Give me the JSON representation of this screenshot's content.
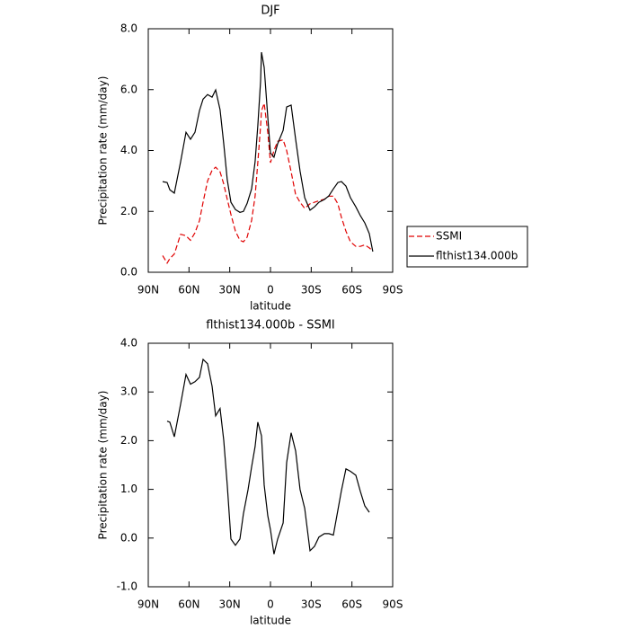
{
  "chart_data": [
    {
      "type": "line",
      "title": "DJF",
      "xlabel": "latitude",
      "ylabel": "Precipitation rate (mm/day)",
      "x": [
        79.4,
        76.1,
        74.1,
        70.8,
        66.2,
        62.2,
        58.9,
        55.6,
        52.3,
        49.6,
        46.3,
        43.0,
        40.4,
        37.1,
        34.4,
        31.8,
        29.1,
        25.8,
        22.5,
        19.9,
        17.2,
        13.9,
        11.3,
        9.3,
        7.3,
        6.6,
        4.6,
        2.0,
        0.0,
        -2.6,
        -5.3,
        -9.3,
        -11.9,
        -15.2,
        -18.5,
        -21.8,
        -25.2,
        -29.1,
        -32.4,
        -35.7,
        -39.7,
        -43.0,
        -46.3,
        -49.6,
        -52.3,
        -55.6,
        -58.9,
        -62.9,
        -66.2,
        -69.5,
        -72.8,
        -75.4
      ],
      "series": [
        {
          "name": "SSMI",
          "color": "#e00000",
          "style": "dashed",
          "values": [
            0.55,
            0.3,
            0.45,
            0.6,
            1.25,
            1.2,
            1.05,
            1.3,
            1.7,
            2.3,
            3.0,
            3.35,
            3.45,
            3.3,
            2.9,
            2.4,
            1.9,
            1.35,
            1.05,
            1.0,
            1.15,
            1.7,
            2.5,
            3.6,
            4.8,
            5.3,
            5.55,
            4.6,
            3.6,
            4.0,
            4.3,
            4.35,
            4.0,
            3.3,
            2.55,
            2.3,
            2.1,
            2.25,
            2.3,
            2.35,
            2.4,
            2.5,
            2.5,
            2.25,
            1.8,
            1.35,
            1.0,
            0.85,
            0.85,
            0.9,
            0.8,
            0.7
          ]
        },
        {
          "name": "flthist134.000b",
          "color": "#000000",
          "style": "solid",
          "values": [
            2.98,
            2.95,
            2.71,
            2.6,
            3.63,
            4.6,
            4.37,
            4.6,
            5.31,
            5.69,
            5.84,
            5.75,
            5.99,
            5.34,
            4.22,
            3.04,
            2.3,
            2.06,
            1.97,
            2.0,
            2.26,
            2.74,
            3.63,
            4.81,
            6.28,
            7.23,
            6.73,
            5.1,
            3.92,
            3.78,
            4.22,
            4.66,
            5.43,
            5.49,
            4.37,
            3.33,
            2.45,
            2.04,
            2.15,
            2.3,
            2.39,
            2.51,
            2.74,
            2.95,
            2.98,
            2.83,
            2.45,
            2.15,
            1.86,
            1.62,
            1.27,
            0.68
          ]
        }
      ],
      "xlim": [
        90,
        -90
      ],
      "xticks": [
        {
          "value": 90,
          "label": "90N"
        },
        {
          "value": 60,
          "label": "60N"
        },
        {
          "value": 30,
          "label": "30N"
        },
        0,
        {
          "value": -30,
          "label": "30S"
        },
        {
          "value": -60,
          "label": "60S"
        },
        {
          "value": -90,
          "label": "90S"
        }
      ],
      "ylim": [
        0,
        8
      ],
      "yticks": [
        {
          "value": 0,
          "label": "0.0"
        },
        {
          "value": 2,
          "label": "2.0"
        },
        {
          "value": 4,
          "label": "4.0"
        },
        {
          "value": 6,
          "label": "6.0"
        },
        {
          "value": 8,
          "label": "8.0"
        }
      ],
      "legend": "outside right"
    },
    {
      "type": "line",
      "title": "flthist134.000b - SSMI",
      "xlabel": "latitude",
      "ylabel": "Precipitation rate (mm/day)",
      "x": [
        76.1,
        74.1,
        70.8,
        66.2,
        62.2,
        58.9,
        55.6,
        52.3,
        49.6,
        46.3,
        43.0,
        40.4,
        37.1,
        34.4,
        31.8,
        29.1,
        25.8,
        22.5,
        19.9,
        16.5,
        13.9,
        11.3,
        9.3,
        6.6,
        4.6,
        2.0,
        0.0,
        -2.6,
        -5.3,
        -9.3,
        -11.9,
        -15.2,
        -18.5,
        -21.8,
        -25.2,
        -29.1,
        -32.4,
        -35.7,
        -39.7,
        -43.0,
        -46.3,
        -49.6,
        -52.3,
        -55.6,
        -58.9,
        -62.9,
        -66.2,
        -69.5,
        -72.8
      ],
      "series": [
        {
          "color": "#000000",
          "style": "solid",
          "values": [
            2.4,
            2.38,
            2.08,
            2.75,
            3.36,
            3.16,
            3.21,
            3.3,
            3.67,
            3.58,
            3.12,
            2.51,
            2.66,
            2.01,
            1.09,
            -0.02,
            -0.15,
            -0.02,
            0.5,
            1.0,
            1.46,
            1.88,
            2.38,
            2.1,
            1.09,
            0.46,
            0.17,
            -0.33,
            -0.02,
            0.31,
            1.55,
            2.16,
            1.79,
            1.0,
            0.61,
            -0.26,
            -0.17,
            0.02,
            0.09,
            0.09,
            0.06,
            0.57,
            0.98,
            1.42,
            1.37,
            1.29,
            0.96,
            0.66,
            0.53
          ]
        }
      ],
      "xlim": [
        90,
        -90
      ],
      "xticks": [
        {
          "value": 90,
          "label": "90N"
        },
        {
          "value": 60,
          "label": "60N"
        },
        {
          "value": 30,
          "label": "30N"
        },
        0,
        {
          "value": -30,
          "label": "30S"
        },
        {
          "value": -60,
          "label": "60S"
        },
        {
          "value": -90,
          "label": "90S"
        }
      ],
      "ylim": [
        -1,
        4
      ],
      "yticks": [
        {
          "value": -1,
          "label": "-1.0"
        },
        {
          "value": 0,
          "label": "0.0"
        },
        {
          "value": 1,
          "label": "1.0"
        },
        {
          "value": 2,
          "label": "2.0"
        },
        {
          "value": 3,
          "label": "3.0"
        },
        {
          "value": 4,
          "label": "4.0"
        }
      ]
    }
  ]
}
